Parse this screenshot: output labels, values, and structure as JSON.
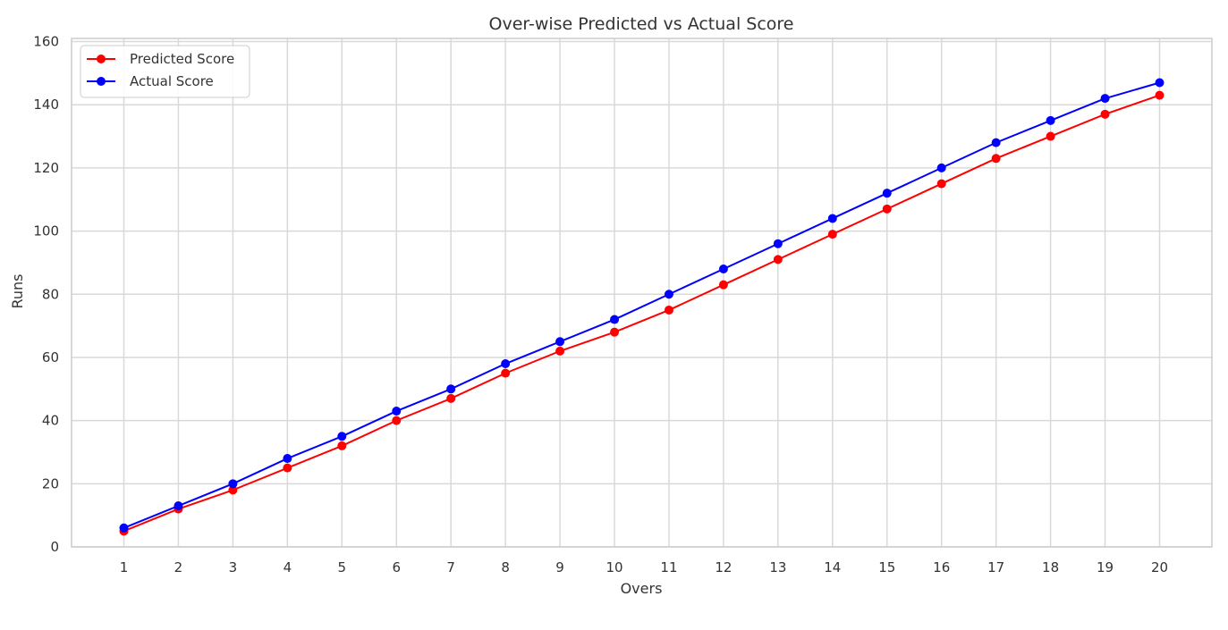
{
  "chart_data": {
    "type": "line",
    "title": "Over-wise Predicted vs Actual Score",
    "xlabel": "Overs",
    "ylabel": "Runs",
    "x": [
      1,
      2,
      3,
      4,
      5,
      6,
      7,
      8,
      9,
      10,
      11,
      12,
      13,
      14,
      15,
      16,
      17,
      18,
      19,
      20
    ],
    "xlim": [
      0.04,
      20.96
    ],
    "ylim": [
      0,
      161
    ],
    "yticks": [
      0,
      20,
      40,
      60,
      80,
      100,
      120,
      140,
      160
    ],
    "grid": true,
    "legend_position": "top-left",
    "series": [
      {
        "name": "Predicted Score",
        "color": "#ff0000",
        "marker": "circle",
        "values": [
          5,
          12,
          18,
          25,
          32,
          40,
          47,
          55,
          62,
          68,
          75,
          83,
          91,
          99,
          107,
          115,
          123,
          130,
          137,
          143
        ]
      },
      {
        "name": "Actual Score",
        "color": "#0000ff",
        "marker": "circle",
        "values": [
          6,
          13,
          20,
          28,
          35,
          43,
          50,
          58,
          65,
          72,
          80,
          88,
          96,
          104,
          112,
          120,
          128,
          135,
          142,
          147
        ]
      }
    ],
    "colors": {
      "grid": "#d9d9d9",
      "spine": "#cccccc",
      "text": "#333333"
    }
  }
}
